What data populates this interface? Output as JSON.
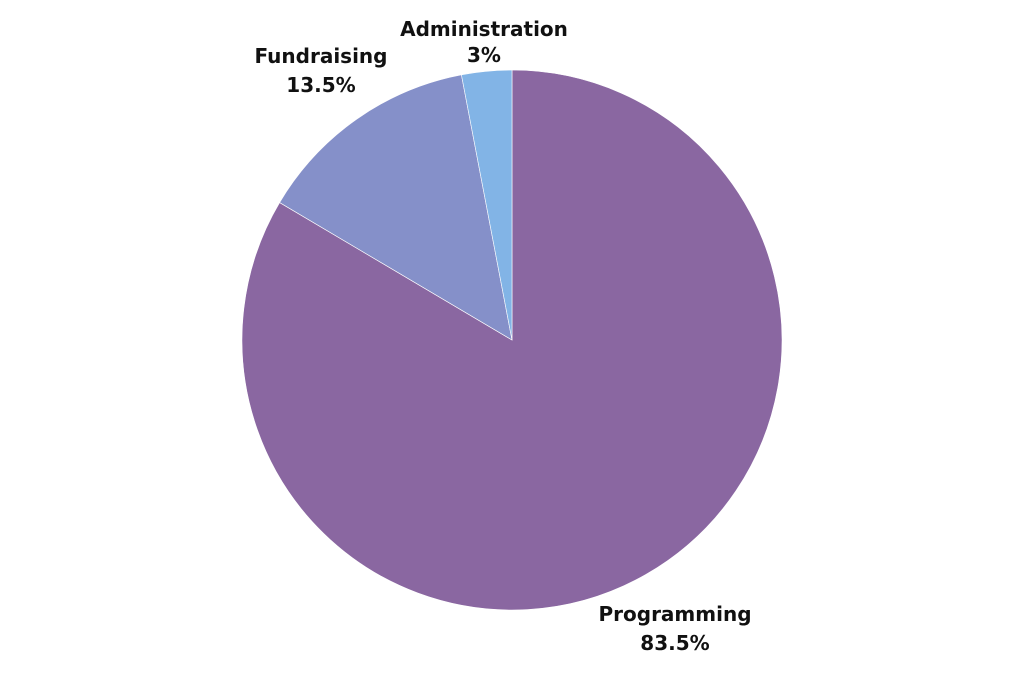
{
  "chart_data": {
    "type": "pie",
    "title": "",
    "slices": [
      {
        "label": "Programming",
        "value": 83.5,
        "value_label": "83.5%",
        "color": "#8a67a1"
      },
      {
        "label": "Fundraising",
        "value": 13.5,
        "value_label": "13.5%",
        "color": "#8590c9"
      },
      {
        "label": "Administration",
        "value": 3,
        "value_label": "3%",
        "color": "#82b4e6"
      }
    ],
    "start_angle": "12 o'clock",
    "direction": "clockwise",
    "legend": "none"
  }
}
